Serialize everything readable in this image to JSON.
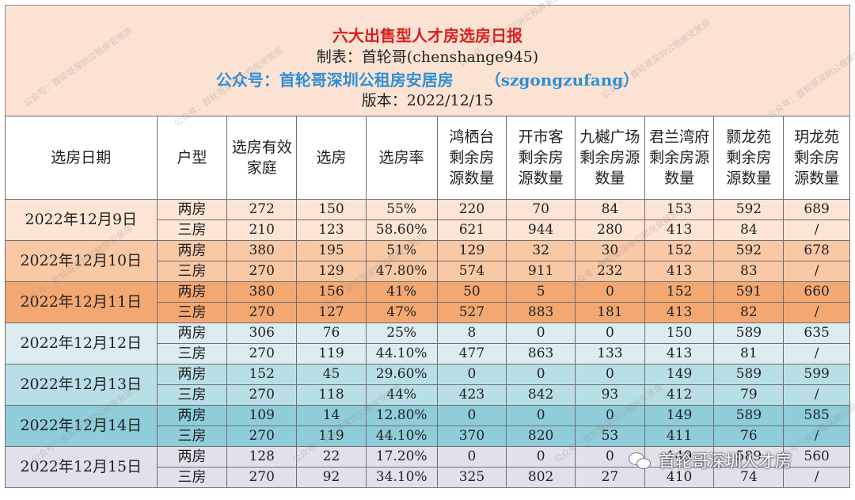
{
  "header": {
    "title": "六大出售型人才房选房日报",
    "maker": "制表：首轮哥(chenshange945)",
    "pub_label": "公众号：首轮哥深圳公租房安居房",
    "pub_id": "（szgongzufang）",
    "version": "版本：2022/12/15"
  },
  "columns": [
    "选房日期",
    "户型",
    "选房有效家庭",
    "选房",
    "选房率",
    "鸿栖台剩余房源数量",
    "开市客剩余房源数量",
    "九樾广场剩余房源数量",
    "君兰湾府剩余房源数量",
    "颢龙苑剩余房源数量",
    "玥龙苑剩余房源数量"
  ],
  "groups": [
    {
      "date": "2022年12月9日",
      "color": "#fde5d6",
      "rows": [
        [
          "两房",
          "272",
          "150",
          "55%",
          "220",
          "70",
          "84",
          "153",
          "592",
          "689"
        ],
        [
          "三房",
          "210",
          "123",
          "58.60%",
          "621",
          "944",
          "280",
          "413",
          "84",
          "/"
        ]
      ]
    },
    {
      "date": "2022年12月10日",
      "color": "#f9c8a4",
      "rows": [
        [
          "两房",
          "380",
          "195",
          "51%",
          "129",
          "32",
          "30",
          "152",
          "592",
          "678"
        ],
        [
          "三房",
          "270",
          "129",
          "47.80%",
          "574",
          "911",
          "232",
          "413",
          "83",
          "/"
        ]
      ]
    },
    {
      "date": "2022年12月11日",
      "color": "#f3a872",
      "rows": [
        [
          "两房",
          "380",
          "156",
          "41%",
          "50",
          "5",
          "0",
          "152",
          "591",
          "660"
        ],
        [
          "三房",
          "270",
          "127",
          "47%",
          "527",
          "883",
          "181",
          "413",
          "82",
          "/"
        ]
      ]
    },
    {
      "date": "2022年12月12日",
      "color": "#dcecf1",
      "rows": [
        [
          "两房",
          "306",
          "76",
          "25%",
          "8",
          "0",
          "0",
          "150",
          "589",
          "635"
        ],
        [
          "三房",
          "270",
          "119",
          "44.10%",
          "477",
          "863",
          "133",
          "413",
          "81",
          "/"
        ]
      ]
    },
    {
      "date": "2022年12月13日",
      "color": "#b9dfe6",
      "rows": [
        [
          "两房",
          "152",
          "45",
          "29.60%",
          "0",
          "0",
          "0",
          "149",
          "589",
          "599"
        ],
        [
          "三房",
          "270",
          "118",
          "44%",
          "423",
          "842",
          "93",
          "412",
          "79",
          "/"
        ]
      ]
    },
    {
      "date": "2022年12月14日",
      "color": "#8ecdd9",
      "rows": [
        [
          "两房",
          "109",
          "14",
          "12.80%",
          "0",
          "0",
          "0",
          "149",
          "589",
          "585"
        ],
        [
          "三房",
          "270",
          "119",
          "44.10%",
          "370",
          "820",
          "53",
          "411",
          "76",
          "/"
        ]
      ]
    },
    {
      "date": "2022年12月15日",
      "color": "#e3e0ec",
      "rows": [
        [
          "两房",
          "128",
          "22",
          "17.20%",
          "0",
          "0",
          "0",
          "149",
          "589",
          "560"
        ],
        [
          "三房",
          "270",
          "92",
          "34.10%",
          "325",
          "802",
          "27",
          "410",
          "74",
          "/"
        ]
      ]
    }
  ],
  "badge": {
    "icon": "wechat-icon",
    "text": "首轮哥深圳人才房"
  },
  "watermark": {
    "text": "公众号：首轮哥深圳公租房安居房"
  }
}
